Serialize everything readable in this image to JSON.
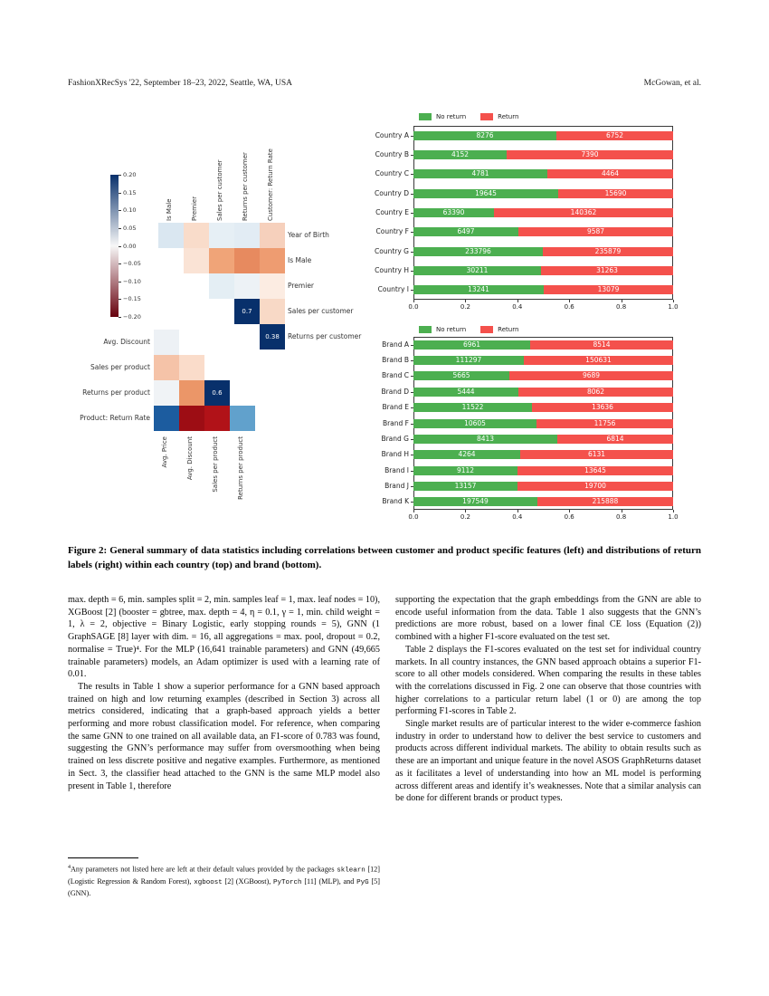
{
  "header": {
    "left": "FashionXRecSys '22, September 18–23, 2022, Seattle, WA, USA",
    "right": "McGowan, et al."
  },
  "figure": {
    "caption": "Figure 2: General summary of data statistics including correlations between customer and product specific features (left) and distributions of return labels (right) within each country (top) and brand (bottom).",
    "colorbar": {
      "ticks": [
        "0.20",
        "0.15",
        "0.10",
        "0.05",
        "0.00",
        "−0.05",
        "−0.10",
        "−0.15",
        "−0.20"
      ],
      "gradient": [
        "#08306b",
        "#f7f7f7",
        "#67000d"
      ]
    },
    "heatmap_customer": {
      "columns": [
        "Is Male",
        "Premier",
        "Sales per customer",
        "Returns per customer",
        "Customer: Return Rate"
      ],
      "rows": [
        "Year of Birth",
        "Is Male",
        "Premier",
        "Sales per customer",
        "Returns per customer"
      ],
      "cells": [
        {
          "row": 0,
          "col": 0,
          "color": "#dae7f1"
        },
        {
          "row": 0,
          "col": 1,
          "color": "#f9dcca"
        },
        {
          "row": 0,
          "col": 2,
          "color": "#e6eff5"
        },
        {
          "row": 0,
          "col": 3,
          "color": "#e2ecf4"
        },
        {
          "row": 0,
          "col": 4,
          "color": "#f6d0bc"
        },
        {
          "row": 1,
          "col": 1,
          "color": "#fae3d5"
        },
        {
          "row": 1,
          "col": 2,
          "color": "#f0a478"
        },
        {
          "row": 1,
          "col": 3,
          "color": "#e78a5f"
        },
        {
          "row": 1,
          "col": 4,
          "color": "#ee9c71"
        },
        {
          "row": 2,
          "col": 2,
          "color": "#e4eef4"
        },
        {
          "row": 2,
          "col": 3,
          "color": "#edf2f6"
        },
        {
          "row": 2,
          "col": 4,
          "color": "#fcece2"
        },
        {
          "row": 3,
          "col": 3,
          "color": "#08306b",
          "label": "0.7"
        },
        {
          "row": 3,
          "col": 4,
          "color": "#f8d9c6"
        },
        {
          "row": 4,
          "col": 4,
          "color": "#08306b",
          "label": "0.38"
        }
      ]
    },
    "heatmap_product": {
      "columns": [
        "Avg. Price",
        "Avg. Discount",
        "Sales per product",
        "Returns per product"
      ],
      "rows": [
        "Avg. Discount",
        "Sales per product",
        "Returns per product",
        "Product: Return Rate"
      ],
      "cells": [
        {
          "row": 0,
          "col": 0,
          "color": "#edf1f5"
        },
        {
          "row": 1,
          "col": 0,
          "color": "#f5c3a8"
        },
        {
          "row": 1,
          "col": 1,
          "color": "#fadcca"
        },
        {
          "row": 2,
          "col": 0,
          "color": "#f0f3f6"
        },
        {
          "row": 2,
          "col": 1,
          "color": "#eb9668"
        },
        {
          "row": 2,
          "col": 2,
          "color": "#08306b",
          "label": "0.6"
        },
        {
          "row": 3,
          "col": 0,
          "color": "#1c5c9f"
        },
        {
          "row": 3,
          "col": 1,
          "color": "#9d0d14"
        },
        {
          "row": 3,
          "col": 2,
          "color": "#b11218"
        },
        {
          "row": 3,
          "col": 3,
          "color": "#61a1cc"
        }
      ]
    }
  },
  "chart_data": [
    {
      "type": "bar",
      "orientation": "horizontal",
      "stacked": true,
      "normalized": true,
      "title": "",
      "xlabel": "",
      "ylabel": "",
      "categories": [
        "Country A",
        "Country B",
        "Country C",
        "Country D",
        "Country E",
        "Country F",
        "Country G",
        "Country H",
        "Country I"
      ],
      "series": [
        {
          "name": "No return",
          "color": "#4caf50",
          "values": [
            8276,
            4152,
            4781,
            19645,
            63390,
            6497,
            233796,
            30211,
            13241
          ]
        },
        {
          "name": "Return",
          "color": "#f4514c",
          "values": [
            6752,
            7390,
            4464,
            15690,
            140362,
            9587,
            235879,
            31263,
            13079
          ]
        }
      ],
      "xticks": [
        "0.0",
        "0.2",
        "0.4",
        "0.6",
        "0.8",
        "1.0"
      ],
      "xlim": [
        0,
        1
      ],
      "legend_position": "upper-left"
    },
    {
      "type": "bar",
      "orientation": "horizontal",
      "stacked": true,
      "normalized": true,
      "title": "",
      "xlabel": "",
      "ylabel": "",
      "categories": [
        "Brand A",
        "Brand B",
        "Brand C",
        "Brand D",
        "Brand E",
        "Brand F",
        "Brand G",
        "Brand H",
        "Brand I",
        "Brand J",
        "Brand K"
      ],
      "series": [
        {
          "name": "No return",
          "color": "#4caf50",
          "values": [
            6961,
            111297,
            5665,
            5444,
            11522,
            10605,
            8413,
            4264,
            9112,
            13157,
            197549
          ]
        },
        {
          "name": "Return",
          "color": "#f4514c",
          "values": [
            8514,
            150631,
            9689,
            8062,
            13636,
            11756,
            6814,
            6131,
            13645,
            19700,
            215888
          ]
        }
      ],
      "xticks": [
        "0.0",
        "0.2",
        "0.4",
        "0.6",
        "0.8",
        "1.0"
      ],
      "xlim": [
        0,
        1
      ],
      "legend_position": "upper-left"
    }
  ],
  "body": {
    "left_column": [
      {
        "indent": false,
        "text": "max. depth = 6, min. samples split = 2, min. samples leaf = 1, max. leaf nodes = 10), XGBoost [2] (booster = gbtree, max. depth = 4, η = 0.1, γ = 1, min. child weight = 1, λ = 2, objective = Binary Logistic, early stopping rounds = 5), GNN (1 GraphSAGE [8] layer with dim. = 16, all aggregations = max. pool, dropout = 0.2, normalise = True)⁴. For the MLP (16,641 trainable parameters) and GNN (49,665 trainable parameters) models, an Adam optimizer is used with a learning rate of 0.01."
      },
      {
        "indent": true,
        "text": "The results in Table 1 show a superior performance for a GNN based approach trained on high and low returning examples (described in Section 3) across all metrics considered, indicating that a graph-based approach yields a better performing and more robust classification model. For reference, when comparing the same GNN to one trained on all available data, an F1-score of 0.783 was found, suggesting the GNN’s performance may suffer from oversmoothing when being trained on less discrete positive and negative examples. Furthermore, as mentioned in Sect. 3, the classifier head attached to the GNN is the same MLP model also present in Table 1, therefore"
      }
    ],
    "right_column": [
      {
        "indent": false,
        "text": "supporting the expectation that the graph embeddings from the GNN are able to encode useful information from the data. Table 1 also suggests that the GNN’s predictions are more robust, based on a lower final CE loss (Equation (2)) combined with a higher F1-score evaluated on the test set."
      },
      {
        "indent": true,
        "text": "Table 2 displays the F1-scores evaluated on the test set for individual country markets. In all country instances, the GNN based approach obtains a superior F1-score to all other models considered. When comparing the results in these tables with the correlations discussed in Fig. 2 one can observe that those countries with higher correlations to a particular return label (1 or 0) are among the top performing F1-scores in Table 2."
      },
      {
        "indent": true,
        "text": "Single market results are of particular interest to the wider e-commerce fashion industry in order to understand how to deliver the best service to customers and products across different individual markets. The ability to obtain results such as these are an important and unique feature in the novel ASOS GraphReturns dataset as it facilitates a level of understanding into how an ML model is performing across different areas and identify it’s weaknesses. Note that a similar analysis can be done for different brands or product types."
      }
    ],
    "footnote": {
      "marker": "4",
      "segments": [
        {
          "mono": false,
          "text": "Any parameters not listed here are left at their default values provided by the packages "
        },
        {
          "mono": true,
          "text": "sklearn"
        },
        {
          "mono": false,
          "text": " [12] (Logistic Regression & Random Forest), "
        },
        {
          "mono": true,
          "text": "xgboost"
        },
        {
          "mono": false,
          "text": " [2] (XGBoost), "
        },
        {
          "mono": true,
          "text": "PyTorch"
        },
        {
          "mono": false,
          "text": " [11] (MLP), and "
        },
        {
          "mono": true,
          "text": "PyG"
        },
        {
          "mono": false,
          "text": " [5] (GNN)."
        }
      ]
    }
  }
}
